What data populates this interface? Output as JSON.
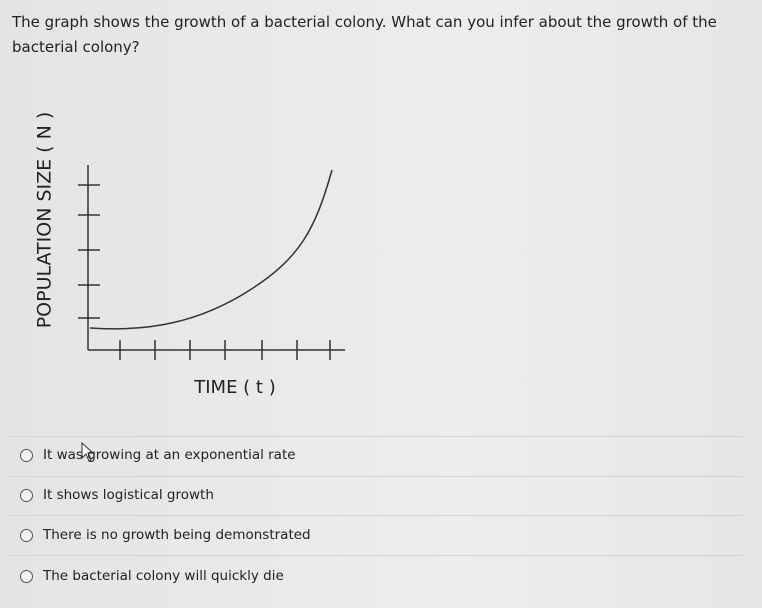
{
  "question": "The graph shows the growth of a bacterial colony. What can you infer about the growth of the bacterial colony?",
  "graph": {
    "y_axis_label": "POPULATION SIZE ( N )",
    "x_axis_label": "TIME ( t )"
  },
  "options": [
    "It was growing at an exponential rate",
    "It shows logistical growth",
    "There is no growth being demonstrated",
    "The bacterial colony will quickly die"
  ]
}
